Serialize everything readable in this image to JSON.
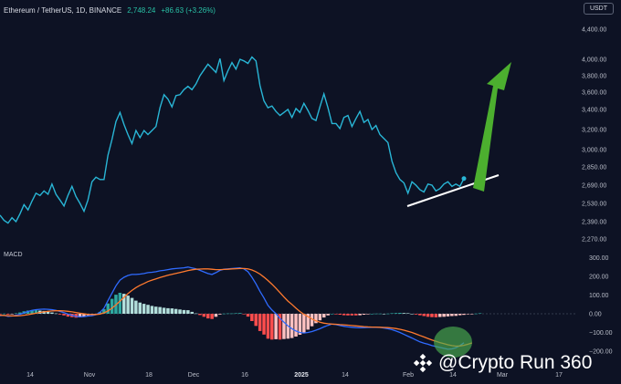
{
  "header": {
    "pair": "Ethereum / TetherUS, 1D, BINANCE",
    "price": "2,748.24",
    "change": "+86.63 (+3.26%)"
  },
  "currency": "USDT",
  "macd_label": "MACD",
  "watermark": "@Crypto Run 360",
  "colors": {
    "background": "#0d1224",
    "price_line": "#29b6d6",
    "macd_line": "#2f6bff",
    "signal_line": "#ff7a2e",
    "hist_positive": "#2ea8a0",
    "hist_positive_light": "#b2dfdb",
    "hist_negative": "#ff4d4d",
    "hist_negative_light": "#ffc1c1",
    "trendline": "#ffffff",
    "arrow": "#4caf2f",
    "highlight_circle": "#4caf50"
  },
  "chart_data": [
    {
      "type": "line",
      "series": [
        {
          "values": [
            2440,
            2400,
            2380,
            2420,
            2390,
            2450,
            2520,
            2480,
            2550,
            2620,
            2600,
            2640,
            2610,
            2700,
            2610,
            2560,
            2510,
            2600,
            2680,
            2590,
            2530,
            2470,
            2560,
            2720,
            2760,
            2740,
            2740,
            2950,
            3100,
            3280,
            3370,
            3250,
            3150,
            3060,
            3190,
            3120,
            3190,
            3150,
            3190,
            3230,
            3420,
            3570,
            3520,
            3430,
            3560,
            3570,
            3630,
            3670,
            3630,
            3700,
            3800,
            3870,
            3940,
            3890,
            3840,
            4010,
            3740,
            3860,
            3960,
            3880,
            4000,
            3980,
            3950,
            4030,
            3980,
            3680,
            3500,
            3420,
            3440,
            3380,
            3340,
            3370,
            3400,
            3320,
            3410,
            3370,
            3470,
            3390,
            3310,
            3290,
            3430,
            3580,
            3420,
            3260,
            3260,
            3210,
            3320,
            3340,
            3230,
            3310,
            3380,
            3270,
            3300,
            3200,
            3240,
            3150,
            3110,
            3070,
            2900,
            2800,
            2740,
            2710,
            2620,
            2720,
            2690,
            2650,
            2630,
            2700,
            2690,
            2640,
            2660,
            2700,
            2720,
            2680,
            2700,
            2680,
            2748.24
          ]
        }
      ],
      "ylim": [
        2200,
        4500
      ],
      "y_ticks": [
        "4,400.00",
        "4,000.00",
        "3,800.00",
        "3,600.00",
        "3,400.00",
        "3,200.00",
        "3,000.00",
        "2,850.00",
        "2,690.00",
        "2,530.00",
        "2,390.00",
        "2,270.00"
      ],
      "x_ticks": [
        "14",
        "Nov",
        "18",
        "Dec",
        "16",
        "2025",
        "14",
        "Feb",
        "14",
        "Mar",
        "17"
      ],
      "x_ticks_bold": [
        "2025"
      ],
      "annotations": [
        "support trendline",
        "upward arrow"
      ]
    },
    {
      "type": "bar",
      "title": "MACD",
      "ylim": [
        -200,
        300
      ],
      "y_ticks": [
        "300.00",
        "200.00",
        "100.00",
        "0.00",
        "−100.00",
        "−200.00"
      ],
      "series": [
        {
          "values": [
            -10,
            -8,
            -14,
            -12,
            -8,
            -3,
            5,
            12,
            18,
            22,
            24,
            25,
            24,
            22,
            18,
            12,
            6,
            -2,
            -8,
            -14,
            -16,
            -15,
            -12,
            -10,
            -5,
            8,
            30,
            70,
            110,
            150,
            180,
            195,
            205,
            210,
            210,
            212,
            215,
            220,
            222,
            225,
            230,
            232,
            236,
            240,
            242,
            244,
            246,
            250,
            245,
            240,
            232,
            224,
            215,
            210,
            220,
            232,
            238,
            240,
            242,
            244,
            246,
            240,
            225,
            195,
            160,
            120,
            85,
            45,
            20,
            0,
            -25,
            -45,
            -65,
            -80,
            -92,
            -100,
            -103,
            -100,
            -95,
            -88,
            -80,
            -70,
            -62,
            -55,
            -58,
            -63,
            -67,
            -70,
            -72,
            -74,
            -75,
            -74,
            -73,
            -72,
            -72,
            -73,
            -76,
            -80,
            -85,
            -92,
            -100,
            -110,
            -120,
            -130,
            -140,
            -150,
            -157,
            -163,
            -170,
            -175,
            -180,
            -185,
            -190,
            -188,
            -182,
            -170,
            -155
          ]
        },
        {
          "values": [
            -8,
            -9,
            -10,
            -11,
            -11,
            -10,
            -8,
            -5,
            -1,
            3,
            7,
            10,
            13,
            15,
            16,
            16,
            15,
            13,
            10,
            7,
            3,
            0,
            -3,
            -4,
            -4,
            -2,
            5,
            15,
            30,
            48,
            68,
            88,
            108,
            125,
            140,
            152,
            162,
            172,
            180,
            187,
            194,
            200,
            206,
            211,
            216,
            221,
            226,
            231,
            235,
            238,
            239,
            240,
            240,
            238,
            236,
            236,
            237,
            238,
            240,
            241,
            242,
            242,
            240,
            234,
            225,
            212,
            196,
            178,
            158,
            136,
            113,
            90,
            68,
            50,
            30,
            12,
            -3,
            -15,
            -28,
            -38,
            -45,
            -50,
            -53,
            -55,
            -56,
            -58,
            -59,
            -61,
            -63,
            -65,
            -67,
            -69,
            -70,
            -71,
            -71,
            -72,
            -73,
            -74,
            -76,
            -79,
            -83,
            -88,
            -94,
            -100,
            -108,
            -116,
            -124,
            -132,
            -140,
            -147,
            -154,
            -160,
            -166,
            -170,
            -173,
            -172,
            -169,
            -163,
            -156
          ]
        },
        {
          "values": [
            -2,
            1,
            -4,
            -1,
            3,
            7,
            13,
            17,
            19,
            19,
            17,
            15,
            11,
            7,
            2,
            -4,
            -9,
            -15,
            -18,
            -21,
            -19,
            -15,
            -9,
            -6,
            -1,
            10,
            25,
            55,
            80,
            102,
            112,
            107,
            97,
            85,
            70,
            60,
            53,
            48,
            42,
            38,
            36,
            32,
            30,
            29,
            26,
            23,
            20,
            19,
            10,
            2,
            -7,
            -16,
            -25,
            -28,
            -16,
            -4,
            1,
            2,
            2,
            3,
            4,
            -2,
            -15,
            -39,
            -65,
            -92,
            -111,
            -133,
            -138,
            -136,
            -138,
            -135,
            -133,
            -130,
            -122,
            -112,
            -100,
            -85,
            -67,
            -50,
            -35,
            -20,
            -9,
            0,
            -2,
            -5,
            -8,
            -9,
            -9,
            -9,
            -8,
            -5,
            -2,
            0,
            1,
            1,
            0,
            1,
            3,
            4,
            5,
            4,
            3,
            0,
            -4,
            -8,
            -12,
            -16,
            -18,
            -19,
            -17,
            -16,
            -14,
            -12,
            -11,
            -8,
            -6,
            -3,
            -1,
            1,
            3
          ]
        }
      ]
    }
  ]
}
